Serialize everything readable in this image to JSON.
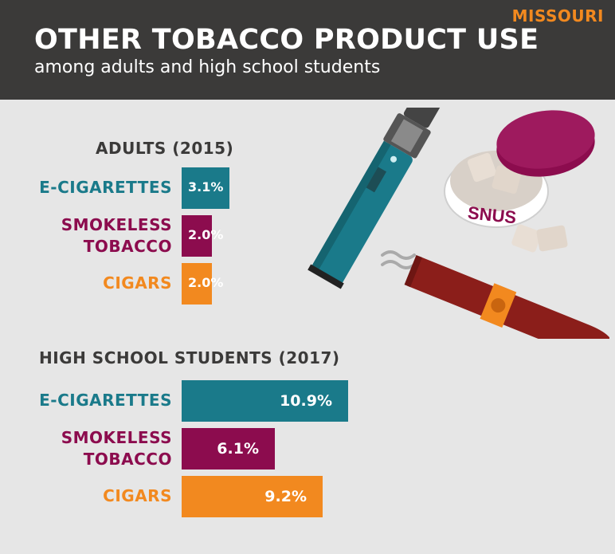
{
  "header": {
    "state": "MISSOURI",
    "title": "OTHER TOBACCO PRODUCT USE",
    "subtitle": "among adults and high school students"
  },
  "illustration": {
    "tin_label": "SNUS",
    "icons": [
      "e-cigarette-icon",
      "snus-tin-icon",
      "cigar-icon"
    ]
  },
  "colors": {
    "ecig": "#1a7a8a",
    "smokeless": "#8c0c4e",
    "cigars": "#f2891f",
    "header_bg": "#3b3a39",
    "background": "#e6e6e6"
  },
  "chart_data": [
    {
      "type": "bar",
      "title": "ADULTS (2015)",
      "categories": [
        "E-CIGARETTES",
        "SMOKELESS TOBACCO",
        "CIGARS"
      ],
      "values": [
        3.1,
        2.0,
        2.0
      ],
      "labels": [
        "3.1%",
        "2.0%",
        "2.0%"
      ],
      "unit": "%"
    },
    {
      "type": "bar",
      "title": "HIGH SCHOOL STUDENTS (2017)",
      "categories": [
        "E-CIGARETTES",
        "SMOKELESS TOBACCO",
        "CIGARS"
      ],
      "values": [
        10.9,
        6.1,
        9.2
      ],
      "labels": [
        "10.9%",
        "6.1%",
        "9.2%"
      ],
      "unit": "%"
    }
  ]
}
